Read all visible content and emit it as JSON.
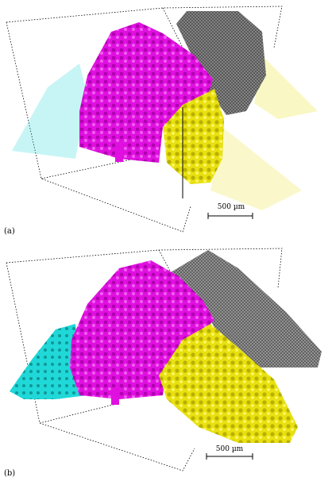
{
  "figure": {
    "panels": [
      {
        "label": "(a)",
        "scale_text": "500 µm"
      },
      {
        "label": "(b)",
        "scale_text": "500 µm"
      }
    ],
    "colors": {
      "magenta": "#e010e0",
      "yellow": "#e8e010",
      "cyan": "#20d8d8",
      "gray": "#505050",
      "bounding_box": "#000000"
    },
    "structures": [
      "magenta-tree",
      "yellow-tree",
      "cyan-tree",
      "gray-cloud"
    ]
  }
}
